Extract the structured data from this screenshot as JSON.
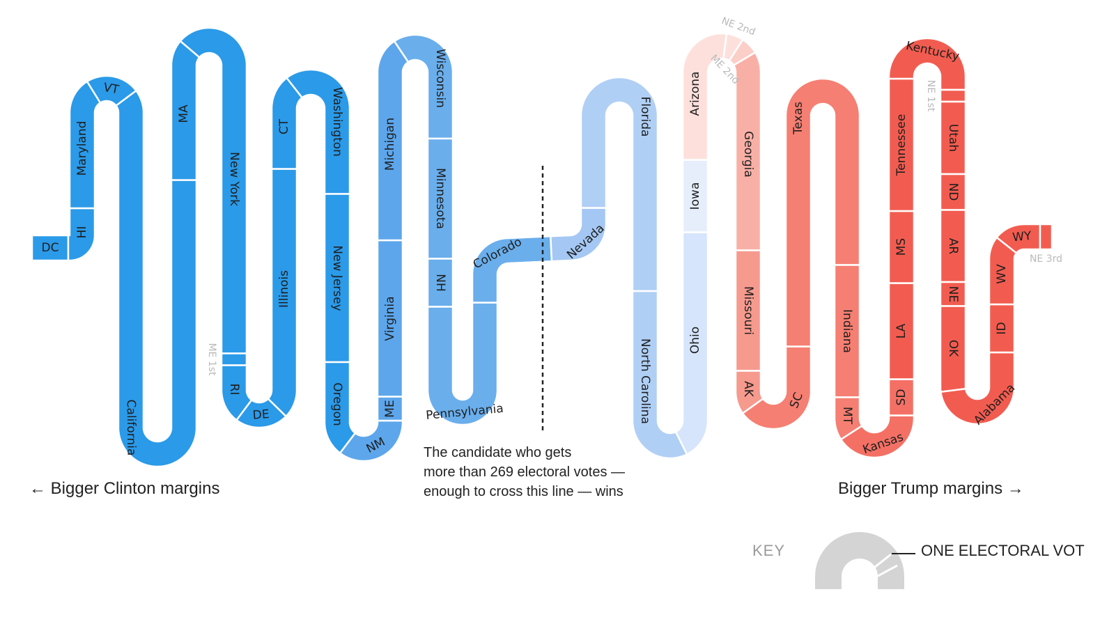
{
  "captions": {
    "clinton": "← Bigger Clinton margins",
    "trump": "Bigger Trump margins →",
    "threshold_lines": [
      "The candidate who gets",
      "more than 269 electoral votes —",
      "enough to cross this line — wins"
    ]
  },
  "key": {
    "label": "KEY",
    "vote_label": "ONE ELECTORAL VOT"
  },
  "colors": {
    "clinton_strong": "#2b9ae8",
    "clinton_mid": "#6aaeec",
    "clinton_lean": "#b0cff5",
    "clinton_tossup": "#d6e5fb",
    "trump_tossup": "#fde0dc",
    "trump_lean": "#f8aea4",
    "trump_mid": "#f57f72",
    "trump_strong": "#f25c50",
    "key_gray": "#d4d4d4"
  },
  "states": [
    {
      "label": "DC",
      "votes": 3,
      "color": "#2b9ae8"
    },
    {
      "label": "HI",
      "votes": 4,
      "color": "#2b9ae8"
    },
    {
      "label": "Maryland",
      "votes": 10,
      "color": "#2b9ae8"
    },
    {
      "label": "VT",
      "votes": 3,
      "color": "#2b9ae8"
    },
    {
      "label": "California",
      "votes": 55,
      "color": "#2b9ae8"
    },
    {
      "label": "MA",
      "votes": 11,
      "color": "#2b9ae8"
    },
    {
      "label": "New York",
      "votes": 29,
      "color": "#2b9ae8"
    },
    {
      "label": "ME 1st",
      "votes": 1,
      "color": "#2b9ae8",
      "light": true
    },
    {
      "label": "RI",
      "votes": 4,
      "color": "#2b9ae8"
    },
    {
      "label": "DE",
      "votes": 3,
      "color": "#2b9ae8"
    },
    {
      "label": "Illinois",
      "votes": 20,
      "color": "#2b9ae8"
    },
    {
      "label": "CT",
      "votes": 7,
      "color": "#2b9ae8"
    },
    {
      "label": "Washington",
      "votes": 12,
      "color": "#2b9ae8"
    },
    {
      "label": "New Jersey",
      "votes": 14,
      "color": "#2b9ae8"
    },
    {
      "label": "Oregon",
      "votes": 7,
      "color": "#2b9ae8"
    },
    {
      "label": "NM",
      "votes": 5,
      "color": "#5da6eb"
    },
    {
      "label": "ME",
      "votes": 2,
      "color": "#5da6eb"
    },
    {
      "label": "Virginia",
      "votes": 13,
      "color": "#5da6eb"
    },
    {
      "label": "Michigan",
      "votes": 16,
      "color": "#5da6eb"
    },
    {
      "label": "Wisconsin",
      "votes": 10,
      "color": "#6aaeec"
    },
    {
      "label": "Minnesota",
      "votes": 10,
      "color": "#6aaeec"
    },
    {
      "label": "NH",
      "votes": 4,
      "color": "#6aaeec"
    },
    {
      "label": "Pennsylvania",
      "votes": 20,
      "color": "#6aaeec"
    },
    {
      "label": "Colorado",
      "votes": 9,
      "color": "#6aaeec"
    },
    {
      "label": "Nevada",
      "votes": 6,
      "color": "#a4c8f3"
    },
    {
      "label": "Florida",
      "votes": 29,
      "color": "#b0cff5"
    },
    {
      "label": "North Carolina",
      "votes": 15,
      "color": "#b0cff5"
    },
    {
      "label": "Ohio",
      "votes": 18,
      "color": "#d6e5fb"
    },
    {
      "label": "Iowa",
      "votes": 6,
      "color": "#e6eefc"
    },
    {
      "label": "Arizona",
      "votes": 11,
      "color": "#fde0dc"
    },
    {
      "label": "NE 2nd",
      "votes": 1,
      "color": "#fde0dc",
      "light": true
    },
    {
      "label": "ME 2nd",
      "votes": 1,
      "color": "#fbcfc8",
      "light": true
    },
    {
      "label": "Georgia",
      "votes": 16,
      "color": "#f8b0a6"
    },
    {
      "label": "Missouri",
      "votes": 10,
      "color": "#f69a8e"
    },
    {
      "label": "AK",
      "votes": 3,
      "color": "#f69a8e"
    },
    {
      "label": "SC",
      "votes": 9,
      "color": "#f57f72"
    },
    {
      "label": "Texas",
      "votes": 38,
      "color": "#f57f72"
    },
    {
      "label": "Indiana",
      "votes": 11,
      "color": "#f57f72"
    },
    {
      "label": "MT",
      "votes": 3,
      "color": "#f57f72"
    },
    {
      "label": "Kansas",
      "votes": 6,
      "color": "#f47065"
    },
    {
      "label": "SD",
      "votes": 3,
      "color": "#f47065"
    },
    {
      "label": "LA",
      "votes": 8,
      "color": "#f25c50"
    },
    {
      "label": "MS",
      "votes": 6,
      "color": "#f25c50"
    },
    {
      "label": "Tennessee",
      "votes": 11,
      "color": "#f25c50"
    },
    {
      "label": "Kentucky",
      "votes": 8,
      "color": "#f25c50"
    },
    {
      "label": "NE 1st",
      "votes": 1,
      "color": "#f25c50",
      "light": true
    },
    {
      "label": "Utah",
      "votes": 6,
      "color": "#f25c50"
    },
    {
      "label": "ND",
      "votes": 3,
      "color": "#f25c50"
    },
    {
      "label": "AR",
      "votes": 6,
      "color": "#f25c50"
    },
    {
      "label": "NE",
      "votes": 2,
      "color": "#f25c50"
    },
    {
      "label": "OK",
      "votes": 7,
      "color": "#f25c50"
    },
    {
      "label": "Alabama",
      "votes": 9,
      "color": "#f25c50"
    },
    {
      "label": "ID",
      "votes": 4,
      "color": "#f25c50"
    },
    {
      "label": "WV",
      "votes": 5,
      "color": "#f25c50"
    },
    {
      "label": "WY",
      "votes": 3,
      "color": "#f25c50"
    },
    {
      "label": "NE 3rd",
      "votes": 1,
      "color": "#f25c50",
      "light": true
    }
  ]
}
